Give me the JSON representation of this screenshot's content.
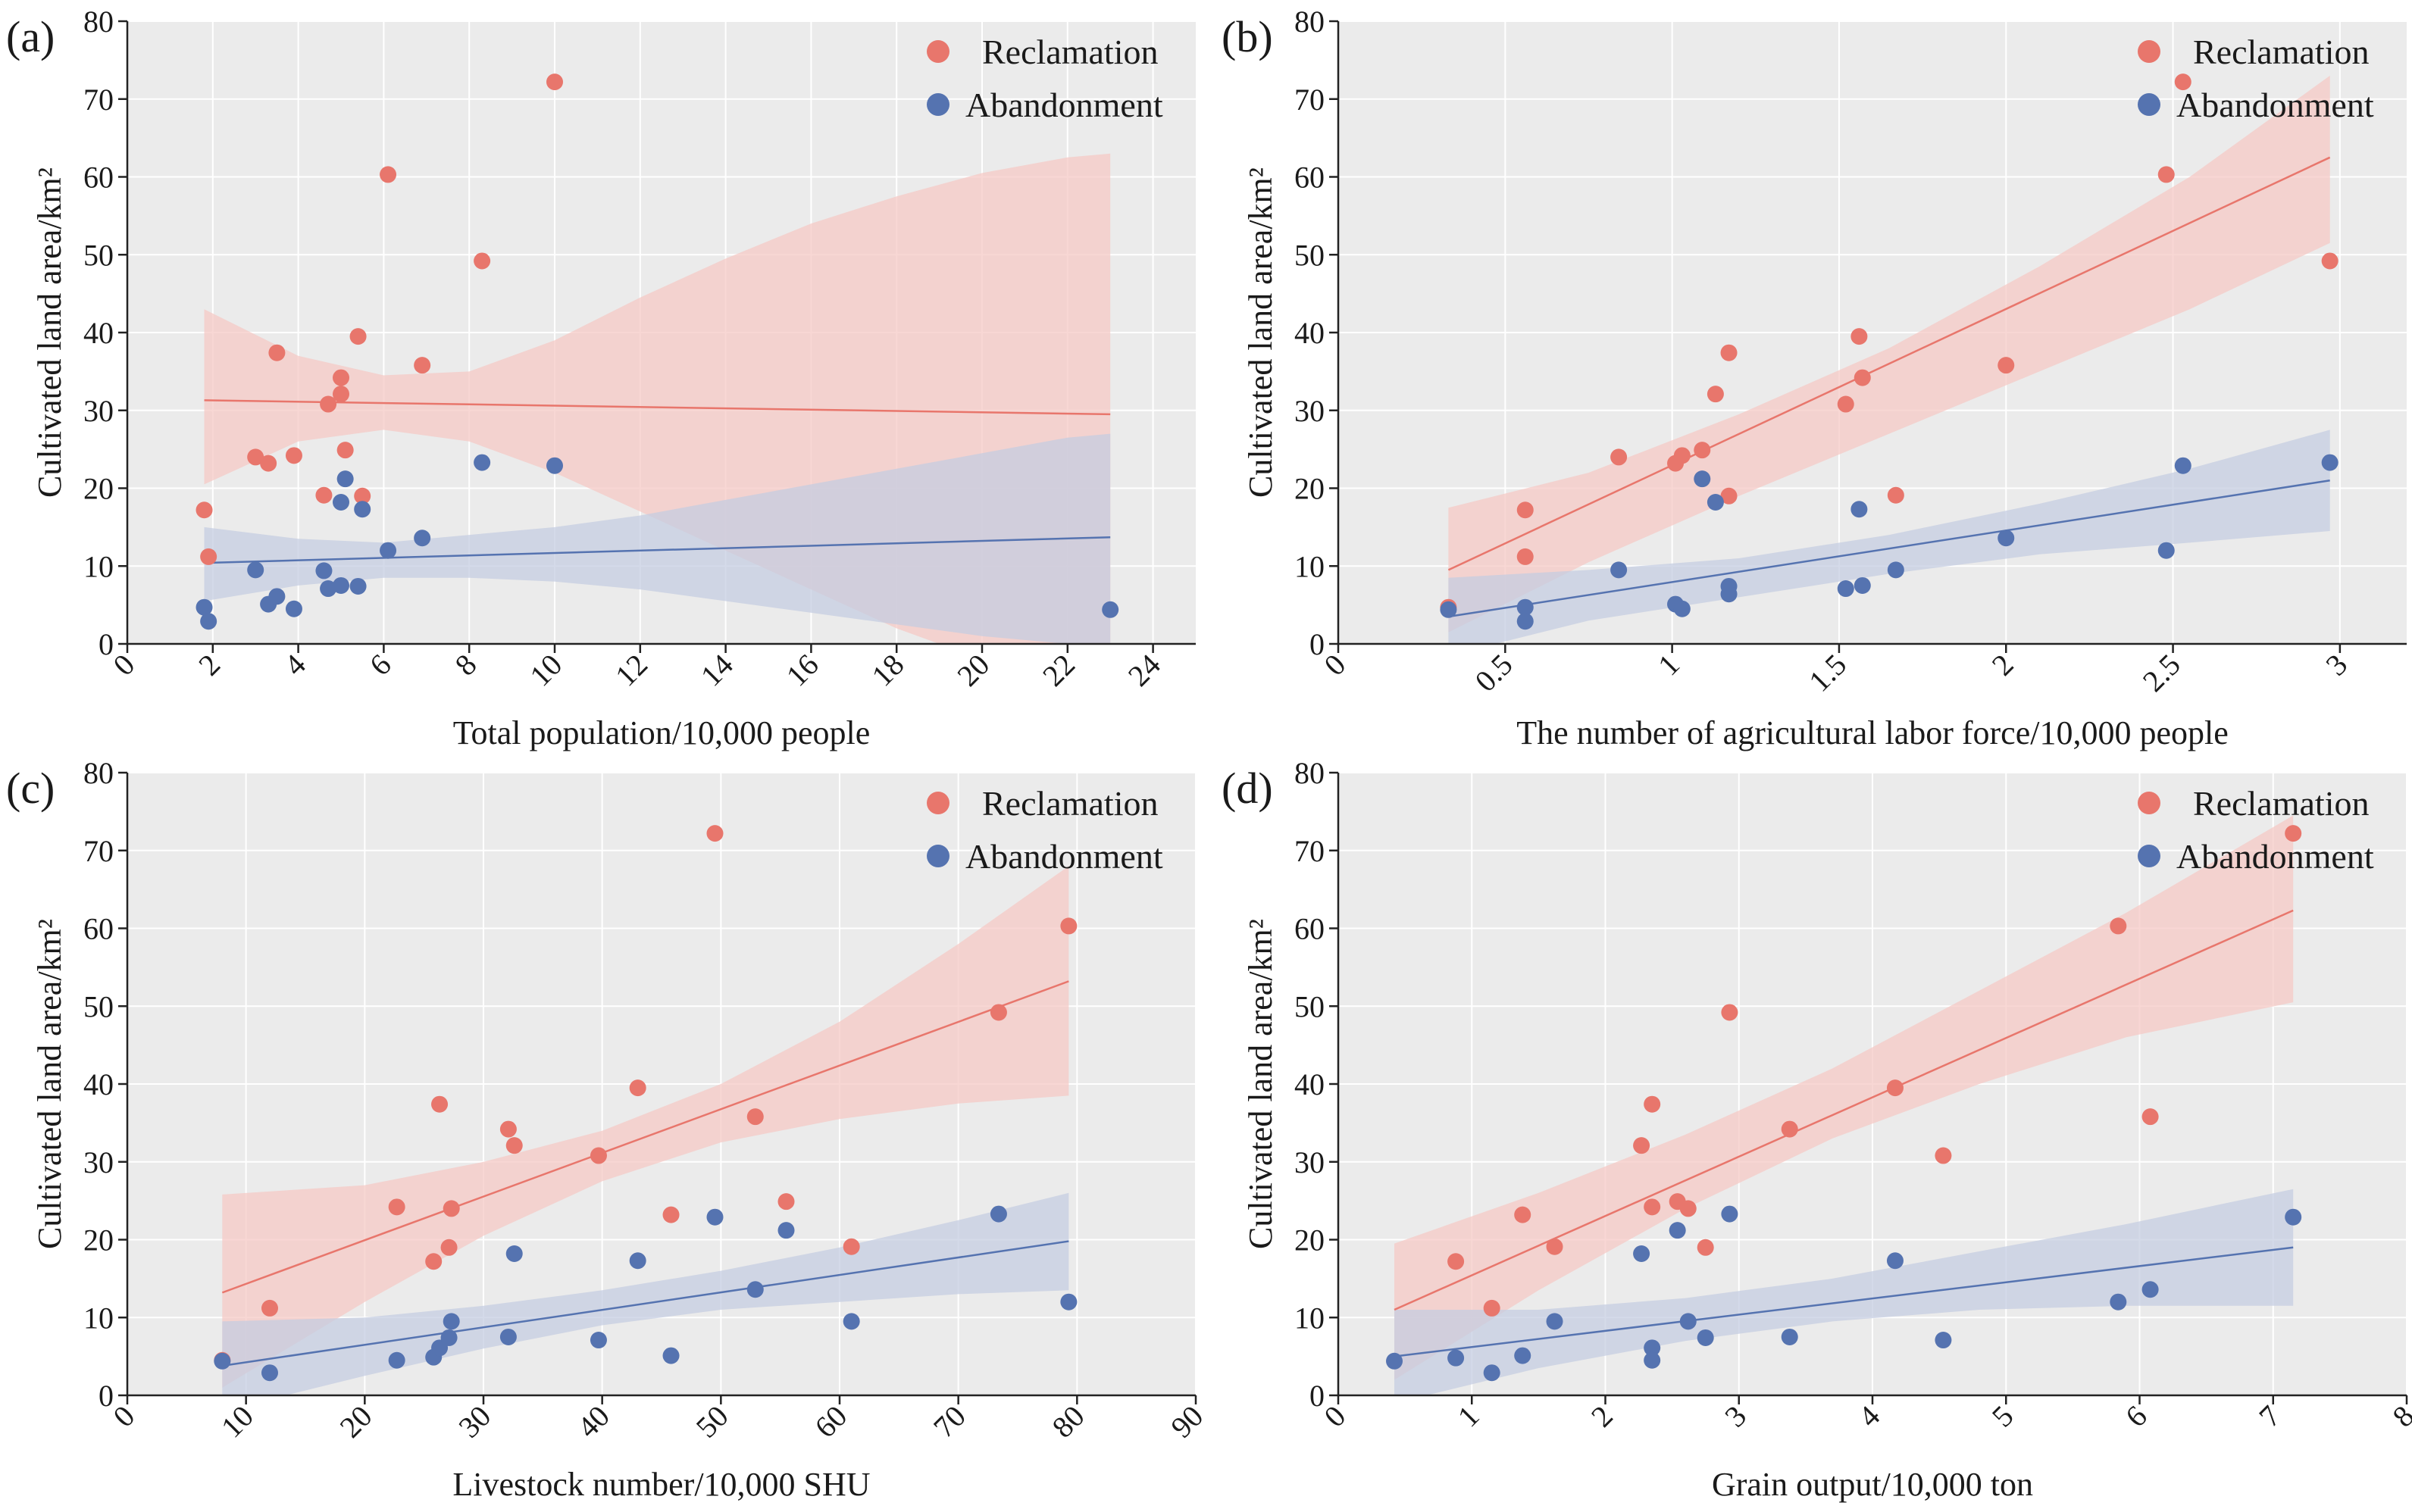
{
  "colors": {
    "reclamation": "#e8766c",
    "abandonment": "#5573b0",
    "panel_bg": "#ebebeb",
    "grid": "#ffffff",
    "band_reclamation": "#f5c8c3",
    "band_abandonment": "#c3cce0"
  },
  "chart_data": [
    {
      "type": "scatter",
      "panel": "(a)",
      "xlabel": "Total population/10,000 people",
      "ylabel": "Cultivated land area/km²",
      "xlim": [
        0,
        25
      ],
      "ylim": [
        0,
        80
      ],
      "xticks": [
        0,
        2,
        4,
        6,
        8,
        10,
        12,
        14,
        16,
        18,
        20,
        22,
        24
      ],
      "yticks": [
        0,
        10,
        20,
        30,
        40,
        50,
        60,
        70,
        80
      ],
      "legend": [
        "Reclamation",
        "Abandonment"
      ],
      "series": [
        {
          "name": "Reclamation",
          "x": [
            1.8,
            1.9,
            3.0,
            3.3,
            3.5,
            3.9,
            4.6,
            4.7,
            5.0,
            5.0,
            5.1,
            5.4,
            5.5,
            6.1,
            6.9,
            8.3,
            10.0
          ],
          "y": [
            17.2,
            11.2,
            24.0,
            23.2,
            37.4,
            24.2,
            19.1,
            30.8,
            32.1,
            34.2,
            24.9,
            39.5,
            19.0,
            60.3,
            35.8,
            49.2,
            72.2
          ],
          "fit_x": [
            1.8,
            23.0
          ],
          "fit_y": [
            31.3,
            29.5
          ],
          "ci_x": [
            1.8,
            4,
            6,
            8,
            10,
            12,
            14,
            16,
            18,
            20,
            22,
            23
          ],
          "ci_low": [
            20.5,
            26.0,
            27.5,
            26.0,
            22.0,
            17.0,
            12.0,
            7.0,
            2.0,
            -2.0,
            -6.0,
            -3.5
          ],
          "ci_high": [
            43.0,
            37.0,
            34.5,
            35.0,
            39.0,
            44.5,
            49.5,
            54.0,
            57.5,
            60.5,
            62.5,
            63.0
          ]
        },
        {
          "name": "Abandonment",
          "x": [
            1.8,
            1.9,
            3.0,
            3.3,
            3.5,
            3.9,
            4.6,
            4.7,
            5.0,
            5.0,
            5.1,
            5.4,
            5.5,
            6.1,
            6.9,
            8.3,
            10.0,
            23.0
          ],
          "y": [
            4.7,
            2.9,
            9.5,
            5.1,
            6.1,
            4.5,
            9.4,
            7.1,
            18.2,
            7.5,
            21.2,
            7.4,
            17.3,
            12.0,
            13.6,
            23.3,
            22.9,
            4.4
          ],
          "fit_x": [
            1.8,
            23.0
          ],
          "fit_y": [
            10.4,
            13.7
          ],
          "ci_x": [
            1.8,
            4,
            6,
            8,
            10,
            12,
            14,
            16,
            18,
            20,
            22,
            23
          ],
          "ci_low": [
            5.5,
            7.5,
            8.5,
            8.5,
            8.0,
            7.0,
            5.5,
            4.0,
            2.5,
            1.0,
            0.0,
            -0.5
          ],
          "ci_high": [
            15.0,
            13.5,
            13.0,
            14.0,
            15.0,
            16.5,
            18.5,
            20.5,
            22.5,
            24.5,
            26.5,
            27.0
          ]
        }
      ]
    },
    {
      "type": "scatter",
      "panel": "(b)",
      "xlabel": "The number of agricultural labor force/10,000 people",
      "ylabel": "Cultivated land area/km²",
      "xlim": [
        0,
        3.2
      ],
      "ylim": [
        0,
        80
      ],
      "xticks": [
        0,
        0.5,
        1,
        1.5,
        2,
        2.5,
        3
      ],
      "yticks": [
        0,
        10,
        20,
        30,
        40,
        50,
        60,
        70,
        80
      ],
      "legend": [
        "Reclamation",
        "Abandonment"
      ],
      "series": [
        {
          "name": "Reclamation",
          "x": [
            0.33,
            0.56,
            0.56,
            0.84,
            1.01,
            1.03,
            1.09,
            1.13,
            1.17,
            1.17,
            1.52,
            1.56,
            1.57,
            1.67,
            2.0,
            2.48,
            2.53,
            2.97
          ],
          "y": [
            4.7,
            17.2,
            11.2,
            24.0,
            23.2,
            24.2,
            24.9,
            32.1,
            37.4,
            19.0,
            30.8,
            39.5,
            34.2,
            19.1,
            35.8,
            60.3,
            72.2,
            49.2
          ],
          "fit_x": [
            0.33,
            2.97
          ],
          "fit_y": [
            9.5,
            62.5
          ],
          "ci_x": [
            0.33,
            0.75,
            1.2,
            1.65,
            2.1,
            2.55,
            2.97
          ],
          "ci_low": [
            1.5,
            10.5,
            19.0,
            27.0,
            35.0,
            43.0,
            51.5
          ],
          "ci_high": [
            17.5,
            22.0,
            29.5,
            38.0,
            48.5,
            60.0,
            73.0
          ]
        },
        {
          "name": "Abandonment",
          "x": [
            0.33,
            0.56,
            0.56,
            0.84,
            1.01,
            1.03,
            1.09,
            1.13,
            1.17,
            1.17,
            1.52,
            1.56,
            1.57,
            1.67,
            2.0,
            2.48,
            2.53,
            2.97
          ],
          "y": [
            4.4,
            4.7,
            2.9,
            9.5,
            5.1,
            4.5,
            21.2,
            18.2,
            7.4,
            6.4,
            7.1,
            17.3,
            7.5,
            9.5,
            13.6,
            12.0,
            22.9,
            23.3
          ],
          "fit_x": [
            0.33,
            2.97
          ],
          "fit_y": [
            3.5,
            21.0
          ],
          "ci_x": [
            0.33,
            0.75,
            1.2,
            1.65,
            2.1,
            2.55,
            2.97
          ],
          "ci_low": [
            -1.5,
            3.0,
            6.0,
            9.0,
            11.5,
            13.0,
            14.5
          ],
          "ci_high": [
            8.5,
            9.5,
            11.0,
            14.0,
            18.0,
            22.5,
            27.5
          ]
        }
      ]
    },
    {
      "type": "scatter",
      "panel": "(c)",
      "xlabel": "Livestock number/10,000 SHU",
      "ylabel": "Cultivated land area/km²",
      "xlim": [
        0,
        90
      ],
      "ylim": [
        0,
        80
      ],
      "xticks": [
        0,
        10,
        20,
        30,
        40,
        50,
        60,
        70,
        80,
        90
      ],
      "yticks": [
        0,
        10,
        20,
        30,
        40,
        50,
        60,
        70,
        80
      ],
      "legend": [
        "Reclamation",
        "Abandonment"
      ],
      "series": [
        {
          "name": "Reclamation",
          "x": [
            8,
            12,
            22.7,
            25.8,
            26.3,
            27.1,
            27.3,
            32.1,
            32.6,
            39.7,
            43.0,
            45.8,
            49.5,
            52.9,
            55.5,
            61.0,
            73.4,
            79.3
          ],
          "y": [
            4.5,
            11.2,
            24.2,
            17.2,
            37.4,
            19.0,
            24.0,
            34.2,
            32.1,
            30.8,
            39.5,
            23.2,
            72.2,
            35.8,
            24.9,
            19.1,
            49.2,
            60.3
          ],
          "fit_x": [
            8,
            79.3
          ],
          "fit_y": [
            13.2,
            53.2
          ],
          "ci_x": [
            8,
            20,
            30,
            40,
            50,
            60,
            70,
            79.3
          ],
          "ci_low": [
            1.0,
            12.0,
            20.5,
            27.5,
            32.5,
            35.5,
            37.5,
            38.5
          ],
          "ci_high": [
            25.8,
            27.0,
            30.0,
            34.0,
            40.0,
            48.0,
            58.0,
            68.0
          ]
        },
        {
          "name": "Abandonment",
          "x": [
            8,
            12,
            22.7,
            25.8,
            26.3,
            27.1,
            27.3,
            32.1,
            32.6,
            39.7,
            43.0,
            45.8,
            49.5,
            52.9,
            55.5,
            61.0,
            73.4,
            79.3
          ],
          "y": [
            4.4,
            2.9,
            4.5,
            4.9,
            6.1,
            7.4,
            9.5,
            7.5,
            18.2,
            7.1,
            17.3,
            5.1,
            22.9,
            13.6,
            21.2,
            9.5,
            23.3,
            12.0
          ],
          "fit_x": [
            8,
            79.3
          ],
          "fit_y": [
            3.8,
            19.8
          ],
          "ci_x": [
            8,
            20,
            30,
            40,
            50,
            60,
            70,
            79.3
          ],
          "ci_low": [
            -2.0,
            2.5,
            6.0,
            9.0,
            11.0,
            12.0,
            13.0,
            13.5
          ],
          "ci_high": [
            9.5,
            10.0,
            11.5,
            13.5,
            16.0,
            19.0,
            22.5,
            26.0
          ]
        }
      ]
    },
    {
      "type": "scatter",
      "panel": "(d)",
      "xlabel": "Grain output/10,000 ton",
      "ylabel": "Cultivated land area/km²",
      "xlim": [
        0,
        8
      ],
      "ylim": [
        0,
        80
      ],
      "xticks": [
        0,
        1,
        2,
        3,
        4,
        5,
        6,
        7,
        8
      ],
      "yticks": [
        0,
        10,
        20,
        30,
        40,
        50,
        60,
        70,
        80
      ],
      "legend": [
        "Reclamation",
        "Abandonment"
      ],
      "series": [
        {
          "name": "Reclamation",
          "x": [
            0.88,
            1.15,
            1.38,
            1.62,
            2.27,
            2.35,
            2.35,
            2.54,
            2.62,
            2.75,
            2.93,
            3.38,
            4.17,
            4.53,
            5.84,
            6.08,
            7.15
          ],
          "y": [
            17.2,
            11.2,
            23.2,
            19.1,
            32.1,
            37.4,
            24.2,
            24.9,
            24.0,
            19.0,
            49.2,
            34.2,
            39.5,
            30.8,
            60.3,
            35.8,
            72.2
          ],
          "fit_x": [
            0.42,
            7.15
          ],
          "fit_y": [
            11.0,
            62.3
          ],
          "ci_x": [
            0.42,
            1.5,
            2.6,
            3.7,
            4.8,
            5.9,
            7.15
          ],
          "ci_low": [
            2.0,
            13.5,
            24.0,
            33.0,
            40.0,
            46.0,
            50.5
          ],
          "ci_high": [
            19.5,
            26.0,
            33.5,
            42.0,
            52.0,
            62.0,
            74.5
          ]
        },
        {
          "name": "Abandonment",
          "x": [
            0.42,
            0.88,
            1.15,
            1.38,
            1.62,
            2.27,
            2.35,
            2.35,
            2.54,
            2.62,
            2.75,
            2.93,
            3.38,
            4.17,
            4.53,
            5.84,
            6.08,
            7.15
          ],
          "y": [
            4.4,
            4.8,
            2.9,
            5.1,
            9.5,
            18.2,
            6.1,
            4.5,
            21.2,
            9.5,
            7.4,
            23.3,
            7.5,
            17.3,
            7.1,
            12.0,
            13.6,
            22.9
          ],
          "fit_x": [
            0.42,
            7.15
          ],
          "fit_y": [
            5.0,
            19.0
          ],
          "ci_x": [
            0.42,
            1.5,
            2.6,
            3.7,
            4.8,
            5.9,
            7.15
          ],
          "ci_low": [
            -1.0,
            3.5,
            7.0,
            9.5,
            11.0,
            11.5,
            11.5
          ],
          "ci_high": [
            11.0,
            11.0,
            12.5,
            15.0,
            18.5,
            22.0,
            26.5
          ]
        }
      ]
    }
  ]
}
